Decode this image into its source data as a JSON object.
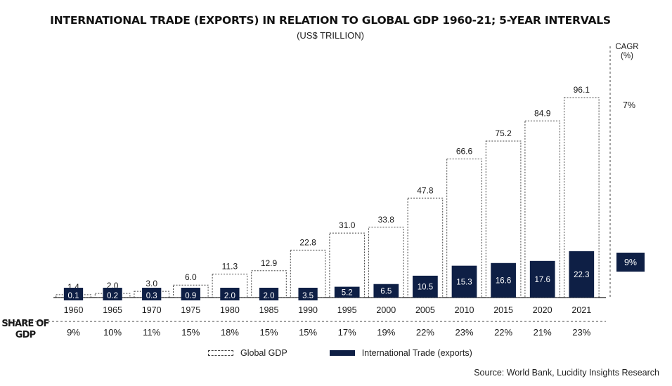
{
  "title": "INTERNATIONAL TRADE (EXPORTS) IN RELATION TO GLOBAL GDP 1960-21; 5-YEAR INTERVALS",
  "subtitle": "(US$ TRILLION)",
  "cagr_label_line1": "CAGR",
  "cagr_label_line2": "(%)",
  "cagr_gdp": "7%",
  "cagr_trade": "9%",
  "share_label_line1": "SHARE OF",
  "share_label_line2": "GDP",
  "legend": {
    "gdp": "Global GDP",
    "trade": "International Trade (exports)"
  },
  "source": "Source: World Bank, Lucidity Insights Research",
  "colors": {
    "trade": "#0e1f45",
    "gdp_border": "#444444"
  },
  "chart_data": {
    "type": "bar",
    "title": "INTERNATIONAL TRADE (EXPORTS) IN RELATION TO GLOBAL GDP 1960-21; 5-YEAR INTERVALS",
    "subtitle": "(US$ TRILLION)",
    "categories": [
      "1960",
      "1965",
      "1970",
      "1975",
      "1980",
      "1985",
      "1990",
      "1995",
      "2000",
      "2005",
      "2010",
      "2015",
      "2020",
      "2021"
    ],
    "series": [
      {
        "name": "Global GDP",
        "values": [
          1.4,
          2.0,
          3.0,
          6.0,
          11.3,
          12.9,
          22.8,
          31.0,
          33.8,
          47.8,
          66.6,
          75.2,
          84.9,
          96.1
        ],
        "labels": [
          "1.4",
          "2.0",
          "3.0",
          "6.0",
          "11.3",
          "12.9",
          "22.8",
          "31.0",
          "33.8",
          "47.8",
          "66.6",
          "75.2",
          "84.9",
          "96.1"
        ]
      },
      {
        "name": "International Trade (exports)",
        "values": [
          0.1,
          0.2,
          0.3,
          0.9,
          2.0,
          2.0,
          3.5,
          5.2,
          6.5,
          10.5,
          15.3,
          16.6,
          17.6,
          22.3
        ],
        "labels": [
          "0.1",
          "0.2",
          "0.3",
          "0.9",
          "2.0",
          "2.0",
          "3.5",
          "5.2",
          "6.5",
          "10.5",
          "15.3",
          "16.6",
          "17.6",
          "22.3"
        ]
      }
    ],
    "share_of_gdp": [
      "9%",
      "10%",
      "11%",
      "15%",
      "18%",
      "15%",
      "15%",
      "17%",
      "19%",
      "22%",
      "23%",
      "22%",
      "21%",
      "23%"
    ],
    "ylim": [
      0,
      100
    ],
    "grid": false,
    "legend_position": "bottom"
  }
}
